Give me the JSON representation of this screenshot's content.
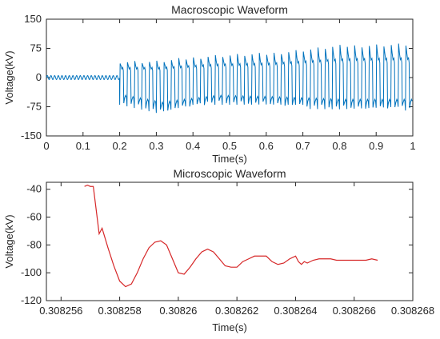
{
  "chart_data": [
    {
      "type": "line",
      "title": "Macroscopic Waveform",
      "xlabel": "Time(s)",
      "ylabel": "Voltage(kV)",
      "xlim": [
        0,
        1
      ],
      "ylim": [
        -150,
        150
      ],
      "xticks": [
        0,
        0.1,
        0.2,
        0.3,
        0.4,
        0.5,
        0.6,
        0.7,
        0.8,
        0.9,
        1
      ],
      "xtick_labels": [
        "0",
        "0.1",
        "0.2",
        "0.3",
        "0.4",
        "0.5",
        "0.6",
        "0.7",
        "0.8",
        "0.9",
        "1"
      ],
      "yticks": [
        -150,
        -75,
        0,
        75,
        150
      ],
      "ytick_labels": [
        "-150",
        "-75",
        "0",
        "75",
        "150"
      ],
      "grid": false,
      "color": "#0072BD",
      "series": [
        {
          "description": "small sinusoidal oscillation until about 0.2 s, then sawtooth-like oscillation growing from about ±60 kV to about ±85 kV",
          "segments": [
            {
              "t_start": 0,
              "t_end": 0.2,
              "period": 0.01,
              "amplitude": 5,
              "shape": "sine"
            },
            {
              "t_start": 0.2,
              "t_end": 1.0,
              "period": 0.02,
              "shape": "sawtooth",
              "envelope": [
                {
                  "t": 0.2,
                  "high": 40,
                  "low": -65
                },
                {
                  "t": 0.3,
                  "high": 40,
                  "low": -90
                },
                {
                  "t": 0.45,
                  "high": 55,
                  "low": -65
                },
                {
                  "t": 0.6,
                  "high": 60,
                  "low": -70
                },
                {
                  "t": 0.8,
                  "high": 80,
                  "low": -80
                },
                {
                  "t": 1.0,
                  "high": 85,
                  "low": -80
                }
              ]
            }
          ]
        }
      ]
    },
    {
      "type": "line",
      "title": "Microscopic Waveform",
      "xlabel": "Time(s)",
      "ylabel": "Voltage(kV)",
      "xlim": [
        0.3082555,
        0.308268
      ],
      "ylim": [
        -120,
        -35
      ],
      "xticks": [
        0.308256,
        0.308258,
        0.30826,
        0.308262,
        0.308264,
        0.308266,
        0.308268
      ],
      "xtick_labels": [
        "0.308256",
        "0.308258",
        "0.30826",
        "0.308262",
        "0.308264",
        "0.308266",
        "0.308268"
      ],
      "yticks": [
        -120,
        -100,
        -80,
        -60,
        -40
      ],
      "ytick_labels": [
        "-120",
        "-100",
        "-80",
        "-60",
        "-40"
      ],
      "grid": false,
      "color": "#D62728",
      "series": [
        {
          "x": [
            0.3082568,
            0.3082569,
            0.308257,
            0.3082571,
            0.3082572,
            0.3082573,
            0.3082574,
            0.3082576,
            0.3082578,
            0.308258,
            0.3082582,
            0.3082584,
            0.3082586,
            0.3082588,
            0.308259,
            0.3082592,
            0.3082594,
            0.3082596,
            0.3082598,
            0.30826,
            0.3082602,
            0.3082604,
            0.3082606,
            0.3082608,
            0.308261,
            0.3082612,
            0.3082614,
            0.3082616,
            0.3082618,
            0.308262,
            0.3082622,
            0.3082624,
            0.3082626,
            0.3082628,
            0.308263,
            0.3082632,
            0.3082634,
            0.3082636,
            0.3082638,
            0.308264,
            0.3082641,
            0.3082642,
            0.3082643,
            0.3082644,
            0.3082646,
            0.3082648,
            0.308265,
            0.3082652,
            0.3082654,
            0.3082656,
            0.3082658,
            0.308266,
            0.3082662,
            0.3082664,
            0.3082666,
            0.3082668
          ],
          "y": [
            -38,
            -37,
            -38,
            -38,
            -55,
            -72,
            -68,
            -82,
            -95,
            -106,
            -110,
            -108,
            -100,
            -90,
            -82,
            -78,
            -77,
            -80,
            -90,
            -100,
            -101,
            -96,
            -90,
            -85,
            -83,
            -85,
            -90,
            -95,
            -96,
            -96,
            -92,
            -90,
            -88,
            -88,
            -88,
            -92,
            -94,
            -93,
            -90,
            -88,
            -92,
            -94,
            -92,
            -93,
            -91,
            -90,
            -90,
            -90,
            -91,
            -91,
            -91,
            -91,
            -91,
            -91,
            -90,
            -91
          ]
        }
      ]
    }
  ]
}
